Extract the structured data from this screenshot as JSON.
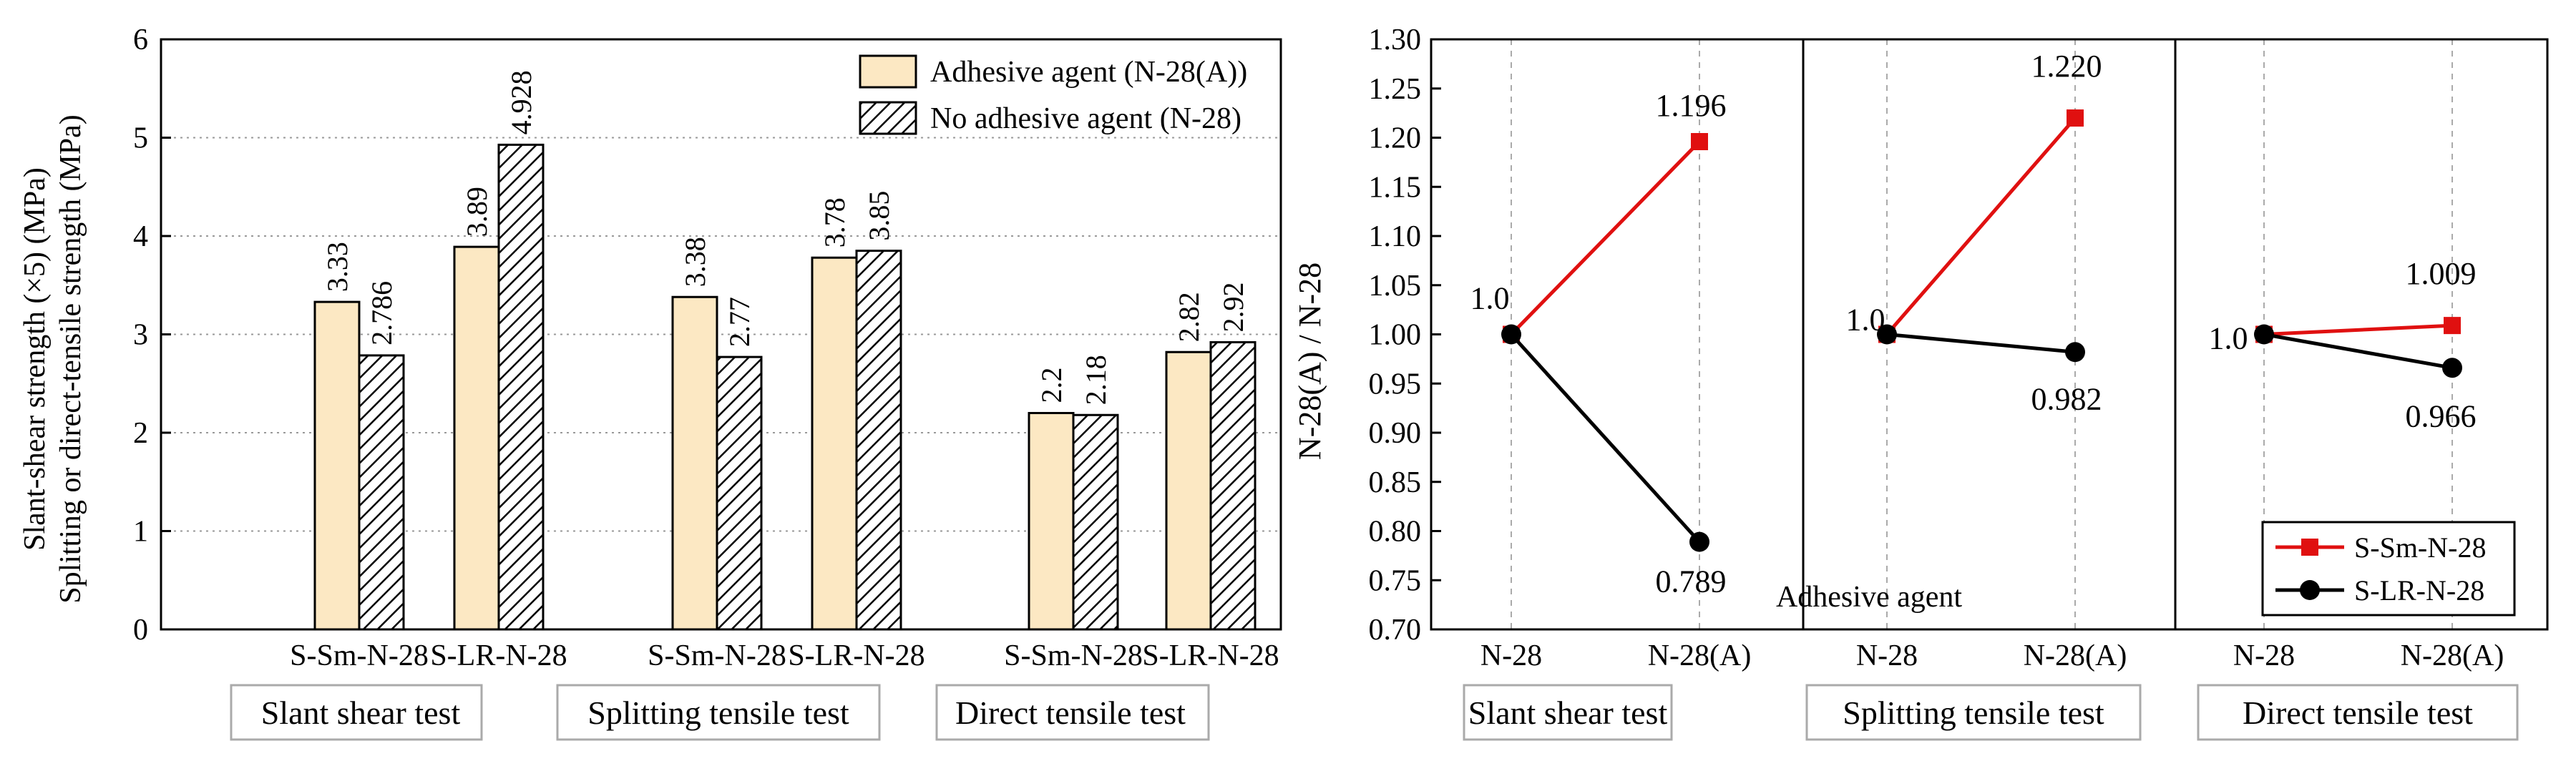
{
  "chart_data": [
    {
      "type": "bar",
      "ylabel_line1": "Slant-shear strength (×5) (MPa)",
      "ylabel_line2": "Splitting or direct-tensile strength (MPa)",
      "ylim": [
        0,
        6
      ],
      "yticks": [
        "0",
        "1",
        "2",
        "3",
        "4",
        "5",
        "6"
      ],
      "grid": "horizontal dotted",
      "legend_position": "top-right",
      "series": [
        {
          "name": "Adhesive agent (N-28(A))",
          "color": "#FCE8C3",
          "hatch": false
        },
        {
          "name": "No adhesive agent (N-28)",
          "color": "#ffffff",
          "hatch": true
        }
      ],
      "groups": [
        {
          "label": "Slant shear test",
          "bars": [
            {
              "category": "S-Sm-N-28",
              "values": [
                3.33,
                2.786
              ],
              "labels": [
                "3.33",
                "2.786"
              ]
            },
            {
              "category": "S-LR-N-28",
              "values": [
                3.89,
                4.928
              ],
              "labels": [
                "3.89",
                "4.928"
              ]
            }
          ]
        },
        {
          "label": "Splitting tensile test",
          "bars": [
            {
              "category": "S-Sm-N-28",
              "values": [
                3.38,
                2.77
              ],
              "labels": [
                "3.38",
                "2.77"
              ]
            },
            {
              "category": "S-LR-N-28",
              "values": [
                3.78,
                3.85
              ],
              "labels": [
                "3.78",
                "3.85"
              ]
            }
          ]
        },
        {
          "label": "Direct tensile test",
          "bars": [
            {
              "category": "S-Sm-N-28",
              "values": [
                2.2,
                2.18
              ],
              "labels": [
                "2.2",
                "2.18"
              ]
            },
            {
              "category": "S-LR-N-28",
              "values": [
                2.82,
                2.92
              ],
              "labels": [
                "2.82",
                "2.92"
              ]
            }
          ]
        }
      ]
    },
    {
      "type": "line",
      "ylabel": "N-28(A) / N-28",
      "ylim": [
        0.7,
        1.3
      ],
      "yticks": [
        "0.70",
        "0.75",
        "0.80",
        "0.85",
        "0.90",
        "0.95",
        "1.00",
        "1.05",
        "1.10",
        "1.15",
        "1.20",
        "1.25",
        "1.30"
      ],
      "x": [
        "N-28",
        "N-28(A)"
      ],
      "grid": "vertical dashed",
      "legend_position": "bottom-right",
      "annotation": "Adhesive agent",
      "series": [
        {
          "name": "S-Sm-N-28",
          "color": "#e01010",
          "marker": "square"
        },
        {
          "name": "S-LR-N-28",
          "color": "#000000",
          "marker": "circle"
        }
      ],
      "panels": [
        {
          "label": "Slant shear test",
          "start_label": "1.0",
          "values": {
            "S-Sm-N-28": [
              1.0,
              1.196
            ],
            "S-LR-N-28": [
              1.0,
              0.789
            ]
          },
          "end_labels": {
            "S-Sm-N-28": "1.196",
            "S-LR-N-28": "0.789"
          }
        },
        {
          "label": "Splitting tensile test",
          "start_label": "1.0",
          "values": {
            "S-Sm-N-28": [
              1.0,
              1.22
            ],
            "S-LR-N-28": [
              1.0,
              0.982
            ]
          },
          "end_labels": {
            "S-Sm-N-28": "1.220",
            "S-LR-N-28": "0.982"
          }
        },
        {
          "label": "Direct tensile test",
          "start_label": "1.0",
          "values": {
            "S-Sm-N-28": [
              1.0,
              1.009
            ],
            "S-LR-N-28": [
              1.0,
              0.966
            ]
          },
          "end_labels": {
            "S-Sm-N-28": "1.009",
            "S-LR-N-28": "0.966"
          }
        }
      ]
    }
  ]
}
